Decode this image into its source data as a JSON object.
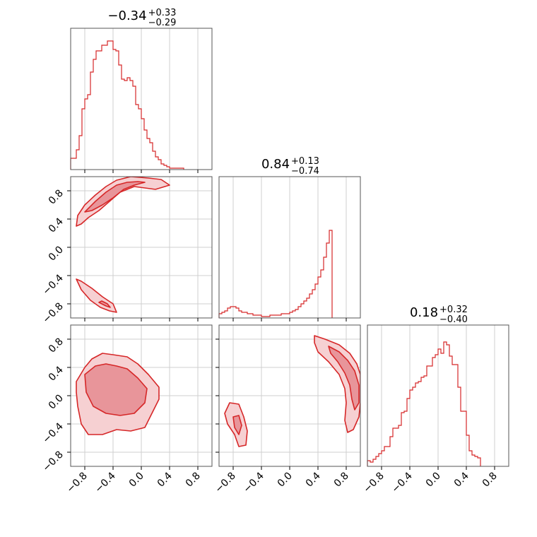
{
  "colors": {
    "accent": "#d62728",
    "fill_dark": "#e8959a",
    "fill_light": "#f6d0d2",
    "grid": "#cfcfcf",
    "frame": "#555555"
  },
  "chart_data": {
    "type": "corner",
    "parameters": 3,
    "axis_range": [
      -1.0,
      1.0
    ],
    "tick_values": [
      -0.8,
      -0.4,
      0.0,
      0.4,
      0.8
    ],
    "tick_labels": [
      "−0.8",
      "−0.4",
      "0.0",
      "0.4",
      "0.8"
    ],
    "grid": true,
    "diagonal": [
      {
        "title_main": "−0.34",
        "title_sup": "+0.33",
        "title_sub": "−0.29",
        "bin_edges_start": -1.0,
        "bin_width": 0.04,
        "counts": [
          0.08,
          0.08,
          0.14,
          0.24,
          0.43,
          0.5,
          0.53,
          0.69,
          0.78,
          0.84,
          0.84,
          0.88,
          0.88,
          0.91,
          0.91,
          0.85,
          0.84,
          0.74,
          0.64,
          0.63,
          0.65,
          0.63,
          0.59,
          0.46,
          0.43,
          0.36,
          0.28,
          0.22,
          0.19,
          0.13,
          0.09,
          0.07,
          0.04,
          0.03,
          0.02,
          0.01,
          0.01,
          0.01,
          0.01,
          0.01
        ]
      },
      {
        "title_main": "0.84",
        "title_sup": "+0.13",
        "title_sub": "−0.74",
        "bin_edges_start": -1.0,
        "bin_width": 0.04,
        "counts": [
          0.03,
          0.04,
          0.05,
          0.07,
          0.08,
          0.08,
          0.07,
          0.05,
          0.04,
          0.04,
          0.03,
          0.03,
          0.02,
          0.02,
          0.02,
          0.01,
          0.01,
          0.01,
          0.02,
          0.02,
          0.02,
          0.02,
          0.03,
          0.03,
          0.03,
          0.04,
          0.05,
          0.06,
          0.08,
          0.1,
          0.12,
          0.14,
          0.17,
          0.2,
          0.24,
          0.29,
          0.34,
          0.43,
          0.53,
          0.62
        ]
      },
      {
        "title_main": "0.18",
        "title_sup": "+0.32",
        "title_sub": "−0.40",
        "bin_edges_start": -1.0,
        "bin_width": 0.04,
        "counts": [
          0.04,
          0.03,
          0.05,
          0.07,
          0.09,
          0.11,
          0.14,
          0.14,
          0.21,
          0.27,
          0.27,
          0.29,
          0.38,
          0.39,
          0.48,
          0.54,
          0.56,
          0.59,
          0.6,
          0.63,
          0.64,
          0.71,
          0.71,
          0.77,
          0.79,
          0.83,
          0.8,
          0.88,
          0.86,
          0.78,
          0.72,
          0.72,
          0.56,
          0.39,
          0.39,
          0.22,
          0.11,
          0.08,
          0.07,
          0.06
        ]
      }
    ],
    "pairs": [
      {
        "x_param": 1,
        "y_param": 2,
        "contours": [
          {
            "level": "outer",
            "points": [
              [
                -0.92,
                0.3
              ],
              [
                -0.9,
                0.45
              ],
              [
                -0.8,
                0.6
              ],
              [
                -0.65,
                0.74
              ],
              [
                -0.5,
                0.86
              ],
              [
                -0.35,
                0.95
              ],
              [
                -0.15,
                1.0
              ],
              [
                0.1,
                0.98
              ],
              [
                0.28,
                0.96
              ],
              [
                0.4,
                0.88
              ],
              [
                0.2,
                0.82
              ],
              [
                0.05,
                0.84
              ],
              [
                -0.1,
                0.86
              ],
              [
                -0.3,
                0.78
              ],
              [
                -0.45,
                0.65
              ],
              [
                -0.6,
                0.52
              ],
              [
                -0.75,
                0.42
              ],
              [
                -0.85,
                0.33
              ]
            ]
          },
          {
            "level": "inner",
            "points": [
              [
                -0.8,
                0.5
              ],
              [
                -0.65,
                0.65
              ],
              [
                -0.5,
                0.78
              ],
              [
                -0.35,
                0.88
              ],
              [
                -0.2,
                0.92
              ],
              [
                -0.05,
                0.93
              ],
              [
                0.05,
                0.92
              ],
              [
                -0.1,
                0.88
              ],
              [
                -0.25,
                0.82
              ],
              [
                -0.4,
                0.7
              ],
              [
                -0.55,
                0.6
              ],
              [
                -0.7,
                0.52
              ]
            ]
          },
          {
            "level": "outer",
            "points": [
              [
                -0.92,
                -0.45
              ],
              [
                -0.85,
                -0.6
              ],
              [
                -0.72,
                -0.75
              ],
              [
                -0.58,
                -0.85
              ],
              [
                -0.45,
                -0.9
              ],
              [
                -0.35,
                -0.92
              ],
              [
                -0.4,
                -0.8
              ],
              [
                -0.55,
                -0.7
              ],
              [
                -0.7,
                -0.58
              ],
              [
                -0.85,
                -0.48
              ]
            ]
          },
          {
            "level": "inner",
            "points": [
              [
                -0.6,
                -0.78
              ],
              [
                -0.5,
                -0.83
              ],
              [
                -0.44,
                -0.85
              ],
              [
                -0.48,
                -0.8
              ],
              [
                -0.56,
                -0.76
              ]
            ]
          }
        ]
      },
      {
        "x_param": 1,
        "y_param": 3,
        "contours": [
          {
            "level": "outer",
            "points": [
              [
                -0.92,
                0.2
              ],
              [
                -0.8,
                0.4
              ],
              [
                -0.7,
                0.52
              ],
              [
                -0.55,
                0.6
              ],
              [
                -0.4,
                0.58
              ],
              [
                -0.2,
                0.55
              ],
              [
                -0.05,
                0.45
              ],
              [
                0.1,
                0.3
              ],
              [
                0.25,
                0.12
              ],
              [
                0.25,
                -0.05
              ],
              [
                0.15,
                -0.25
              ],
              [
                0.05,
                -0.45
              ],
              [
                -0.15,
                -0.5
              ],
              [
                -0.35,
                -0.48
              ],
              [
                -0.55,
                -0.55
              ],
              [
                -0.75,
                -0.55
              ],
              [
                -0.85,
                -0.4
              ],
              [
                -0.9,
                -0.15
              ],
              [
                -0.92,
                0.05
              ]
            ]
          },
          {
            "level": "inner",
            "points": [
              [
                -0.8,
                0.3
              ],
              [
                -0.65,
                0.42
              ],
              [
                -0.5,
                0.45
              ],
              [
                -0.35,
                0.42
              ],
              [
                -0.2,
                0.38
              ],
              [
                -0.05,
                0.25
              ],
              [
                0.08,
                0.1
              ],
              [
                0.05,
                -0.1
              ],
              [
                -0.1,
                -0.25
              ],
              [
                -0.3,
                -0.28
              ],
              [
                -0.5,
                -0.25
              ],
              [
                -0.68,
                -0.15
              ],
              [
                -0.78,
                0.05
              ]
            ]
          }
        ]
      },
      {
        "x_param": 2,
        "y_param": 3,
        "contours": [
          {
            "level": "outer",
            "points": [
              [
                0.35,
                0.85
              ],
              [
                0.5,
                0.8
              ],
              [
                0.7,
                0.72
              ],
              [
                0.85,
                0.6
              ],
              [
                0.95,
                0.45
              ],
              [
                1.0,
                0.3
              ],
              [
                1.0,
                -0.1
              ],
              [
                0.98,
                -0.3
              ],
              [
                0.9,
                -0.48
              ],
              [
                0.82,
                -0.52
              ],
              [
                0.78,
                -0.35
              ],
              [
                0.8,
                -0.1
              ],
              [
                0.78,
                0.1
              ],
              [
                0.7,
                0.3
              ],
              [
                0.55,
                0.48
              ],
              [
                0.4,
                0.62
              ],
              [
                0.35,
                0.75
              ]
            ]
          },
          {
            "level": "inner",
            "points": [
              [
                0.55,
                0.7
              ],
              [
                0.7,
                0.62
              ],
              [
                0.82,
                0.5
              ],
              [
                0.92,
                0.35
              ],
              [
                0.98,
                0.15
              ],
              [
                0.98,
                -0.1
              ],
              [
                0.92,
                -0.2
              ],
              [
                0.88,
                -0.05
              ],
              [
                0.85,
                0.15
              ],
              [
                0.78,
                0.32
              ],
              [
                0.68,
                0.48
              ],
              [
                0.58,
                0.6
              ]
            ]
          },
          {
            "level": "outer",
            "points": [
              [
                -0.92,
                -0.25
              ],
              [
                -0.85,
                -0.1
              ],
              [
                -0.72,
                -0.12
              ],
              [
                -0.65,
                -0.3
              ],
              [
                -0.6,
                -0.5
              ],
              [
                -0.62,
                -0.7
              ],
              [
                -0.72,
                -0.72
              ],
              [
                -0.78,
                -0.55
              ],
              [
                -0.88,
                -0.4
              ]
            ]
          },
          {
            "level": "inner",
            "points": [
              [
                -0.8,
                -0.3
              ],
              [
                -0.72,
                -0.28
              ],
              [
                -0.68,
                -0.42
              ],
              [
                -0.72,
                -0.55
              ],
              [
                -0.78,
                -0.45
              ]
            ]
          }
        ]
      }
    ]
  }
}
